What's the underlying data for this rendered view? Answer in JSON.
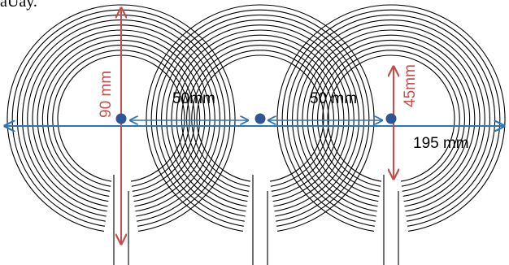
{
  "header_fragment": "aUay.",
  "labels": {
    "height_total": "90 mm",
    "height_inner": "45mm",
    "spacing_left": "50mm",
    "spacing_right": "50 mm",
    "width_total": "195 mm"
  },
  "colors": {
    "coil": "#000000",
    "horizontal_dim": "#2e75b6",
    "vertical_dim": "#c0504d",
    "center_dot": "#2f5597",
    "background": "#ffffff"
  }
}
